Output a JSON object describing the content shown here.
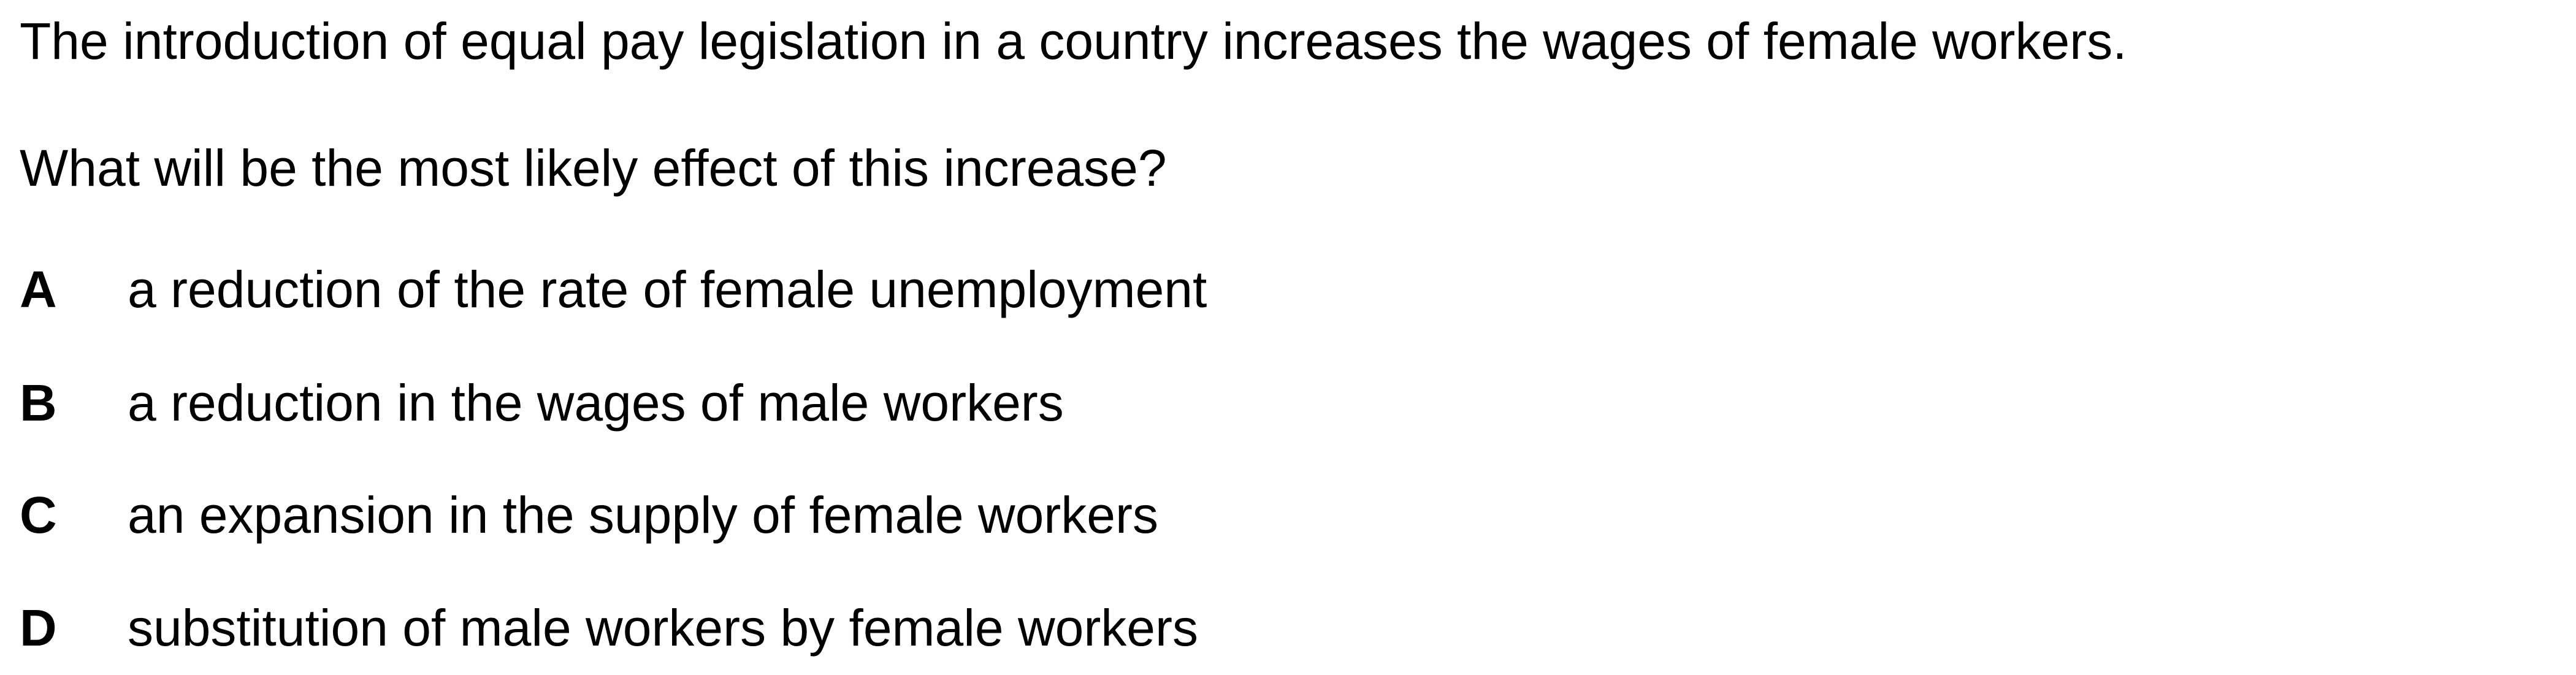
{
  "question": {
    "stem": "The introduction of equal pay legislation in a country increases the wages of female workers.",
    "prompt": "What will be the most likely effect of this increase?"
  },
  "options": [
    {
      "letter": "A",
      "text": "a reduction of the rate of female unemployment"
    },
    {
      "letter": "B",
      "text": "a reduction in the wages of male workers"
    },
    {
      "letter": "C",
      "text": "an expansion in the supply of female workers"
    },
    {
      "letter": "D",
      "text": "substitution of male workers by female workers"
    }
  ]
}
